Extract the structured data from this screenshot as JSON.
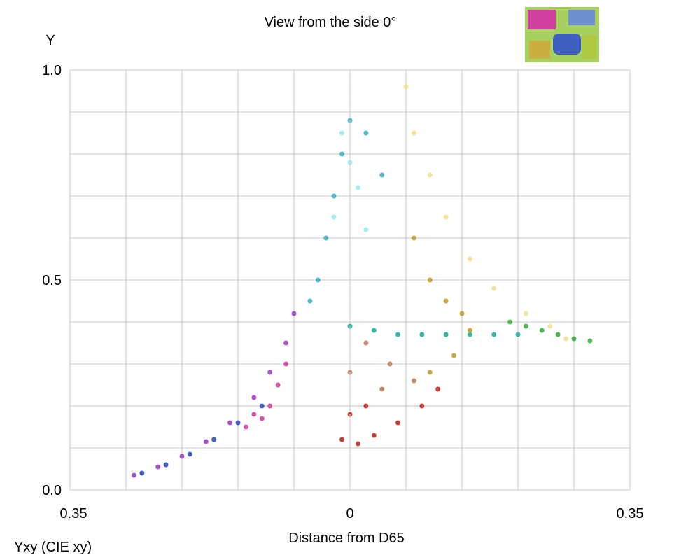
{
  "chart_data": {
    "type": "scatter",
    "title": "View from the side 0°",
    "ylabel": "Y",
    "xlabel": "Distance from D65",
    "footer_label": "Yxy (CIE xy)",
    "xlim": [
      -0.35,
      0.35
    ],
    "ylim": [
      0,
      1.0
    ],
    "x_tick_labels": [
      {
        "value": -0.35,
        "label": "0.35"
      },
      {
        "value": 0,
        "label": "0"
      },
      {
        "value": 0.35,
        "label": "0.35"
      }
    ],
    "y_tick_labels": [
      {
        "value": 0,
        "label": "0.0"
      },
      {
        "value": 0.5,
        "label": "0.5"
      },
      {
        "value": 1.0,
        "label": "1.0"
      }
    ],
    "grid_step_x": 0.07,
    "grid_step_y": 0.1,
    "grid": true,
    "thumbnail": {
      "description_colors": [
        "#d040a0",
        "#4060c0",
        "#80c040"
      ]
    },
    "series": [
      {
        "color": "#a040c0",
        "points": [
          [
            -0.27,
            0.035
          ],
          [
            -0.24,
            0.055
          ],
          [
            -0.21,
            0.08
          ],
          [
            -0.18,
            0.115
          ],
          [
            -0.15,
            0.16
          ],
          [
            -0.12,
            0.22
          ],
          [
            -0.1,
            0.28
          ],
          [
            -0.08,
            0.35
          ],
          [
            -0.07,
            0.42
          ]
        ]
      },
      {
        "color": "#3050c0",
        "points": [
          [
            -0.26,
            0.04
          ],
          [
            -0.23,
            0.06
          ],
          [
            -0.2,
            0.085
          ],
          [
            -0.17,
            0.12
          ],
          [
            -0.14,
            0.16
          ],
          [
            -0.11,
            0.2
          ]
        ]
      },
      {
        "color": "#d040a0",
        "points": [
          [
            -0.13,
            0.15
          ],
          [
            -0.11,
            0.17
          ],
          [
            -0.1,
            0.2
          ],
          [
            -0.09,
            0.25
          ],
          [
            -0.12,
            0.18
          ],
          [
            -0.08,
            0.3
          ]
        ]
      },
      {
        "color": "#40b0c0",
        "points": [
          [
            -0.05,
            0.45
          ],
          [
            -0.04,
            0.5
          ],
          [
            -0.03,
            0.6
          ],
          [
            -0.02,
            0.7
          ],
          [
            -0.01,
            0.8
          ],
          [
            0,
            0.88
          ],
          [
            0.02,
            0.85
          ],
          [
            0.04,
            0.75
          ]
        ]
      },
      {
        "color": "#a0e8f0",
        "points": [
          [
            -0.01,
            0.85
          ],
          [
            0,
            0.78
          ],
          [
            0.01,
            0.72
          ],
          [
            -0.02,
            0.65
          ],
          [
            0.02,
            0.62
          ]
        ]
      },
      {
        "color": "#20b0a0",
        "points": [
          [
            0,
            0.39
          ],
          [
            0.03,
            0.38
          ],
          [
            0.06,
            0.37
          ],
          [
            0.09,
            0.37
          ],
          [
            0.12,
            0.37
          ],
          [
            0.15,
            0.37
          ],
          [
            0.18,
            0.37
          ],
          [
            0.21,
            0.37
          ]
        ]
      },
      {
        "color": "#f0e090",
        "points": [
          [
            0.07,
            0.96
          ],
          [
            0.08,
            0.85
          ],
          [
            0.1,
            0.75
          ],
          [
            0.12,
            0.65
          ],
          [
            0.15,
            0.55
          ],
          [
            0.18,
            0.48
          ],
          [
            0.22,
            0.42
          ],
          [
            0.25,
            0.39
          ],
          [
            0.27,
            0.36
          ]
        ]
      },
      {
        "color": "#c0a030",
        "points": [
          [
            0.08,
            0.6
          ],
          [
            0.1,
            0.5
          ],
          [
            0.12,
            0.45
          ],
          [
            0.14,
            0.42
          ],
          [
            0.15,
            0.38
          ],
          [
            0.13,
            0.32
          ],
          [
            0.1,
            0.28
          ]
        ]
      },
      {
        "color": "#40b040",
        "points": [
          [
            0.2,
            0.4
          ],
          [
            0.22,
            0.39
          ],
          [
            0.24,
            0.38
          ],
          [
            0.26,
            0.37
          ],
          [
            0.28,
            0.36
          ],
          [
            0.3,
            0.355
          ]
        ]
      },
      {
        "color": "#c03020",
        "points": [
          [
            -0.01,
            0.12
          ],
          [
            0.01,
            0.11
          ],
          [
            0.03,
            0.13
          ],
          [
            0.06,
            0.16
          ],
          [
            0.09,
            0.2
          ],
          [
            0.11,
            0.24
          ],
          [
            0.0,
            0.18
          ],
          [
            0.02,
            0.2
          ]
        ]
      },
      {
        "color": "#c08060",
        "points": [
          [
            0.02,
            0.35
          ],
          [
            0.05,
            0.3
          ],
          [
            0.08,
            0.26
          ],
          [
            0.0,
            0.28
          ],
          [
            0.04,
            0.24
          ]
        ]
      }
    ]
  }
}
